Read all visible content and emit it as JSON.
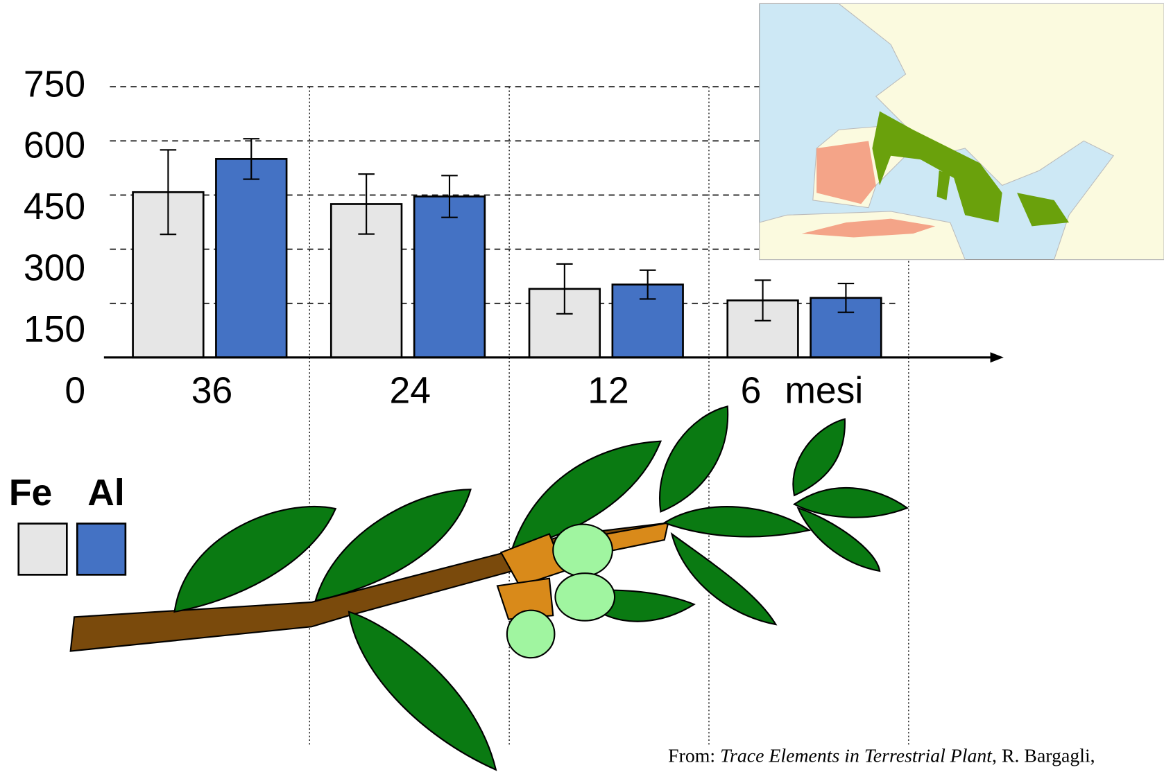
{
  "chart_data": {
    "type": "bar",
    "categories": [
      "36",
      "24",
      "12",
      "6"
    ],
    "x_label": "mesi",
    "series": [
      {
        "name": "Fe",
        "color": "#e6e6e6",
        "values": [
          458,
          425,
          190,
          158
        ],
        "errors": [
          117,
          83,
          69,
          56
        ]
      },
      {
        "name": "Al",
        "color": "#4472c4",
        "values": [
          550,
          446,
          202,
          165
        ],
        "errors": [
          56,
          58,
          40,
          40
        ]
      }
    ],
    "ylim": [
      0,
      750
    ],
    "yticks": [
      0,
      150,
      300,
      450,
      600,
      750
    ],
    "grid": true
  },
  "source": {
    "prefix": "From: ",
    "title": "Trace Elements in Terrestrial Plant",
    "suffix": ", R. Bargagli,"
  }
}
